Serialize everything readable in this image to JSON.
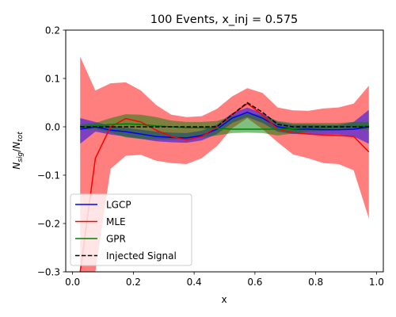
{
  "chart_data": {
    "type": "line",
    "title": "100 Events, x_inj = 0.575",
    "xlabel": "x",
    "ylabel": "N_sig/N_tot",
    "xlim": [
      -0.0225,
      1.0225
    ],
    "ylim": [
      -0.3,
      0.2
    ],
    "xticks": [
      0.0,
      0.2,
      0.4,
      0.6,
      0.8,
      1.0
    ],
    "xtick_labels": [
      "0.0",
      "0.2",
      "0.4",
      "0.6",
      "0.8",
      "1.0"
    ],
    "yticks": [
      -0.3,
      -0.2,
      -0.1,
      0.0,
      0.1,
      0.2
    ],
    "ytick_labels": [
      "−0.3",
      "−0.2",
      "−0.1",
      "0.0",
      "0.1",
      "0.2"
    ],
    "grid": false,
    "legend_position": "lower-left",
    "x": [
      0.025,
      0.075,
      0.125,
      0.175,
      0.225,
      0.275,
      0.325,
      0.375,
      0.425,
      0.475,
      0.525,
      0.575,
      0.625,
      0.675,
      0.725,
      0.775,
      0.825,
      0.875,
      0.925,
      0.975
    ],
    "series": [
      {
        "name": "LGCP",
        "color": "#0000ff",
        "style": "solid",
        "values": [
          -0.005,
          0.0,
          -0.007,
          -0.01,
          -0.015,
          -0.02,
          -0.022,
          -0.023,
          -0.018,
          -0.005,
          0.018,
          0.03,
          0.018,
          0.0,
          -0.005,
          -0.005,
          -0.006,
          -0.006,
          -0.005,
          0.0
        ],
        "band_upper": [
          0.018,
          0.01,
          0.002,
          -0.002,
          -0.006,
          -0.01,
          -0.012,
          -0.013,
          -0.008,
          0.005,
          0.028,
          0.04,
          0.028,
          0.01,
          0.005,
          0.005,
          0.004,
          0.004,
          0.01,
          0.035
        ],
        "band_lower": [
          -0.035,
          -0.01,
          -0.016,
          -0.02,
          -0.025,
          -0.03,
          -0.032,
          -0.033,
          -0.028,
          -0.015,
          0.008,
          0.02,
          0.008,
          -0.01,
          -0.015,
          -0.015,
          -0.016,
          -0.016,
          -0.02,
          -0.035
        ],
        "band_color": "#0000ff"
      },
      {
        "name": "MLE",
        "color": "#ff0000",
        "style": "solid",
        "values": [
          -0.3,
          -0.065,
          0.0,
          0.017,
          0.01,
          -0.007,
          -0.02,
          -0.027,
          -0.02,
          0.0,
          0.025,
          0.048,
          0.025,
          -0.005,
          -0.012,
          -0.015,
          -0.017,
          -0.018,
          -0.02,
          -0.052
        ],
        "band_upper": [
          0.145,
          0.075,
          0.09,
          0.092,
          0.075,
          0.045,
          0.025,
          0.02,
          0.022,
          0.037,
          0.063,
          0.08,
          0.07,
          0.04,
          0.034,
          0.033,
          0.038,
          0.04,
          0.048,
          0.085
        ],
        "band_lower": [
          -0.3,
          -0.3,
          -0.087,
          -0.06,
          -0.058,
          -0.07,
          -0.075,
          -0.077,
          -0.065,
          -0.04,
          -0.003,
          0.018,
          -0.005,
          -0.032,
          -0.057,
          -0.065,
          -0.075,
          -0.077,
          -0.09,
          -0.19
        ],
        "band_color": "#ff0000"
      },
      {
        "name": "GPR",
        "color": "#008000",
        "style": "solid",
        "values": [
          0.0,
          0.002,
          0.005,
          0.006,
          0.005,
          0.002,
          0.0,
          -0.002,
          -0.002,
          -0.003,
          -0.005,
          -0.005,
          -0.005,
          -0.005,
          -0.004,
          -0.002,
          -0.001,
          0.0,
          0.001,
          0.002
        ],
        "band_upper": [
          0.005,
          0.008,
          0.018,
          0.026,
          0.025,
          0.02,
          0.013,
          0.01,
          0.01,
          0.012,
          0.022,
          0.028,
          0.024,
          0.012,
          0.008,
          0.008,
          0.008,
          0.008,
          0.01,
          0.01
        ],
        "band_lower": [
          -0.005,
          -0.005,
          -0.012,
          -0.022,
          -0.025,
          -0.026,
          -0.026,
          -0.025,
          -0.022,
          -0.018,
          -0.013,
          -0.012,
          -0.013,
          -0.018,
          -0.014,
          -0.01,
          -0.008,
          -0.007,
          -0.006,
          -0.005
        ],
        "band_color": "#008000"
      },
      {
        "name": "Injected Signal",
        "color": "#000000",
        "style": "dashed",
        "values": [
          0.0,
          0.0,
          0.0,
          0.0,
          0.0,
          0.0,
          0.0,
          0.0,
          0.0,
          0.0,
          0.025,
          0.05,
          0.03,
          0.005,
          0.0,
          0.0,
          0.0,
          0.0,
          0.0,
          0.0
        ]
      }
    ]
  }
}
